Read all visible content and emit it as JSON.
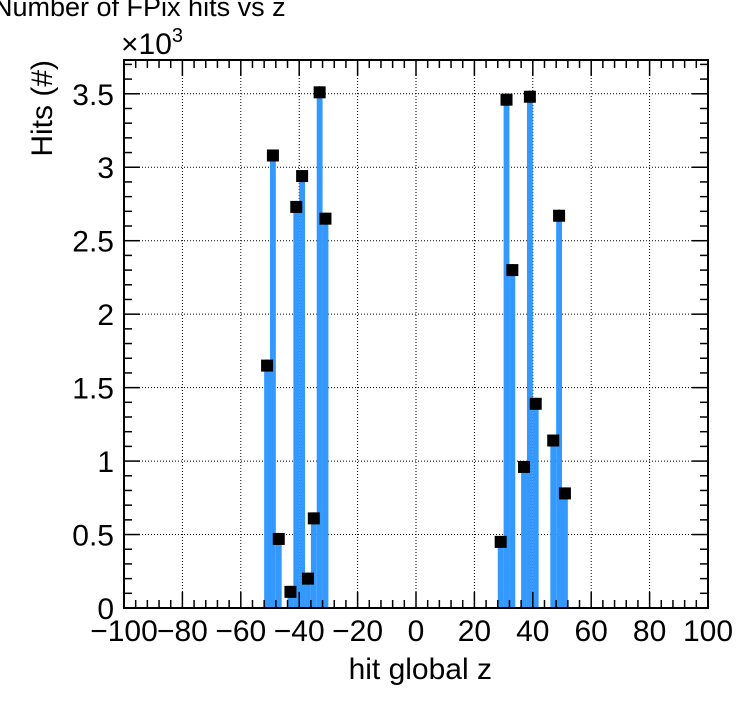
{
  "chart_data": {
    "type": "bar",
    "title": "Number of FPix hits vs z",
    "xlabel": "hit global z",
    "ylabel": "Hits (#)",
    "y_multiplier_label": "×10",
    "y_multiplier_exponent": "3",
    "xlim": [
      -100,
      100
    ],
    "ylim": [
      0,
      3.73
    ],
    "xticks": [
      -100,
      -80,
      -60,
      -40,
      -20,
      0,
      20,
      40,
      60,
      80,
      100
    ],
    "xtick_labels": [
      "−100",
      "−80",
      "−60",
      "−40",
      "−20",
      "0",
      "20",
      "40",
      "60",
      "80",
      "100"
    ],
    "yticks": [
      0,
      0.5,
      1,
      1.5,
      2,
      2.5,
      3,
      3.5
    ],
    "ytick_labels": [
      "0",
      "0.5",
      "1",
      "1.5",
      "2",
      "2.5",
      "3",
      "3.5"
    ],
    "grid": true,
    "bin_width": 2,
    "bar_color": "#3399ff",
    "marker_color": "#000000",
    "x": [
      -51,
      -49,
      -47,
      -43,
      -41,
      -39,
      -37,
      -35,
      -33,
      -31,
      29,
      31,
      33,
      37,
      39,
      41,
      47,
      49,
      51
    ],
    "values": [
      1.65,
      3.08,
      0.47,
      0.11,
      2.73,
      2.94,
      0.2,
      0.61,
      3.51,
      2.65,
      0.45,
      3.46,
      2.3,
      0.96,
      3.48,
      1.39,
      1.14,
      2.67,
      0.78
    ]
  }
}
